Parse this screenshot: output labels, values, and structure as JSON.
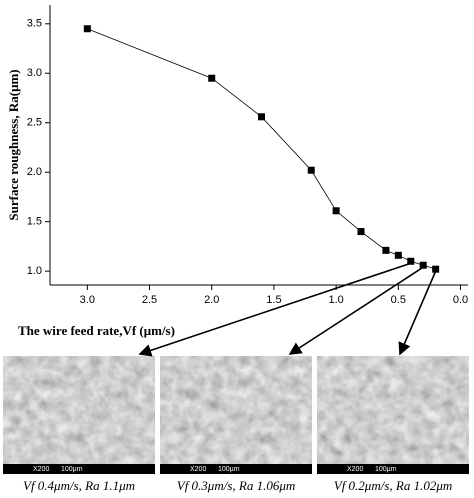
{
  "chart_data": {
    "type": "line",
    "x_label": "The wire feed rate,Vf (μm/s)",
    "y_label": "Surface roughness, Ra(μm)",
    "x": [
      3.0,
      2.0,
      1.6,
      1.2,
      1.0,
      0.8,
      0.6,
      0.5,
      0.4,
      0.3,
      0.2
    ],
    "series": [
      {
        "color": "#000000",
        "values": [
          3.45,
          2.95,
          2.56,
          2.02,
          1.61,
          1.4,
          1.21,
          1.16,
          1.1,
          1.06,
          1.02
        ]
      }
    ],
    "xlim": [
      3.3,
      -0.06
    ],
    "ylim": [
      0.86,
      3.69
    ],
    "xticks": [
      {
        "value": 3,
        "label": "3.0"
      },
      {
        "value": 2.5,
        "label": "2.5"
      },
      {
        "value": 2,
        "label": "2.0"
      },
      {
        "value": 1.5,
        "label": "1.5"
      },
      {
        "value": 1,
        "label": "1.0"
      },
      {
        "value": 0.5,
        "label": "0.5"
      },
      {
        "value": 0,
        "label": "0.0"
      }
    ],
    "yticks": [
      {
        "value": 1,
        "label": "1.0"
      },
      {
        "value": 1.5,
        "label": "1.5"
      },
      {
        "value": 2,
        "label": "2.0"
      },
      {
        "value": 2.5,
        "label": "2.5"
      },
      {
        "value": 3,
        "label": "3.0"
      },
      {
        "value": 3.5,
        "label": "3.5"
      }
    ],
    "grid": false
  },
  "images": [
    {
      "scale": "X200",
      "bar": "100μm",
      "caption": "Vf 0.4μm/s, Ra 1.1μm"
    },
    {
      "scale": "X200",
      "bar": "100μm",
      "caption": "Vf 0.3μm/s, Ra 1.06μm"
    },
    {
      "scale": "X200",
      "bar": "100μm",
      "caption": "Vf 0.2μm/s, Ra 1.02μm"
    }
  ]
}
